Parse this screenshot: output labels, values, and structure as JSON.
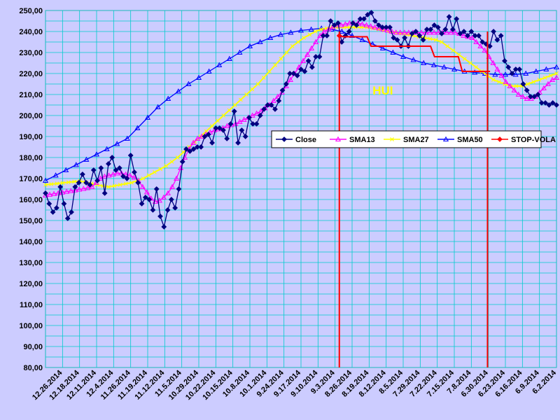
{
  "chart_data": {
    "type": "line",
    "ylim": [
      80,
      250
    ],
    "ytick_values": [
      80,
      90,
      100,
      110,
      120,
      130,
      140,
      150,
      160,
      170,
      180,
      190,
      200,
      210,
      220,
      230,
      240,
      250
    ],
    "ytick_labels": [
      "80,00",
      "90,00",
      "100,00",
      "110,00",
      "120,00",
      "130,00",
      "140,00",
      "150,00",
      "160,00",
      "170,00",
      "180,00",
      "190,00",
      "200,00",
      "210,00",
      "220,00",
      "230,00",
      "240,00",
      "250,00"
    ],
    "x_tick_labels": [
      "12.26.2014",
      "12.18.2014",
      "12.11.2014",
      "12.4.2014",
      "11.26.2014",
      "11.19.2014",
      "11.12.2014",
      "11.5.2014",
      "10.29.2014",
      "10.22.2014",
      "10.15.2014",
      "10.8.2014",
      "10.1.2014",
      "9.24.2014",
      "9.17.2014",
      "9.10.2014",
      "9.3.2014",
      "8.26.2014",
      "8.19.2014",
      "8.12.2014",
      "8.5.2014",
      "7.29.2014",
      "7.22.2014",
      "7.15.2014",
      "7.8.2014",
      "6.30.2014",
      "6.23.2014",
      "6.16.2014",
      "6.9.2014",
      "6.2.2014"
    ],
    "grid": true,
    "legend_position": "center-right",
    "annotation": {
      "text": "HUI",
      "color": "#ffff00"
    },
    "series": [
      {
        "name": "Close",
        "color": "#000080",
        "marker": "diamond",
        "values": [
          163,
          158,
          154,
          156,
          166,
          158,
          151,
          154,
          166,
          168,
          172,
          168,
          167,
          174,
          169,
          175,
          163,
          177,
          180,
          174,
          175,
          171,
          170,
          181,
          173,
          168,
          158,
          161,
          160,
          155,
          165,
          152,
          147,
          155,
          160,
          156,
          165,
          178,
          184,
          183,
          184,
          185,
          185,
          190,
          191,
          187,
          194,
          194,
          193,
          189,
          196,
          202,
          187,
          193,
          190,
          199,
          196,
          196,
          200,
          203,
          205,
          205,
          203,
          207,
          212,
          215,
          220,
          220,
          219,
          222,
          221,
          226,
          223,
          228,
          228,
          238,
          238,
          245,
          243,
          244,
          235,
          238,
          240,
          244,
          243,
          246,
          246,
          248,
          249,
          245,
          243,
          242,
          242,
          242,
          237,
          236,
          233,
          237,
          233,
          239,
          240,
          238,
          236,
          241,
          241,
          243,
          242,
          239,
          241,
          247,
          241,
          246,
          239,
          240,
          238,
          240,
          238,
          238,
          235,
          234,
          233,
          240,
          236,
          238,
          226,
          223,
          220,
          222,
          222,
          215,
          212,
          209,
          209,
          210,
          206,
          206,
          205,
          206,
          205
        ]
      },
      {
        "name": "SMA13",
        "color": "#ff00ff",
        "marker": "triangle",
        "values": [
          162,
          162.35,
          162.7,
          163.05,
          163.4,
          163.75,
          164.1,
          164.45,
          164.8,
          165.15,
          165.5,
          166,
          168,
          170,
          171,
          171.5,
          172,
          172.5,
          172.5,
          172,
          171.5,
          170.5,
          169,
          166,
          163.5,
          160.5,
          159,
          159.5,
          161,
          163,
          166,
          170,
          175,
          180,
          184,
          187,
          189,
          190,
          191,
          192,
          193,
          193.5,
          194,
          195,
          195.5,
          196,
          197,
          198,
          199,
          200,
          201,
          202,
          203.5,
          205,
          207,
          209,
          211,
          214,
          217,
          220,
          223,
          226,
          229,
          232,
          235,
          238,
          240,
          241,
          242,
          243,
          243,
          243.5,
          244,
          244,
          244,
          243.5,
          243,
          242.5,
          242,
          241.5,
          241,
          240.5,
          240,
          239.5,
          239.5,
          239.5,
          239.5,
          239.5,
          239.5,
          239.5,
          239.5,
          239.5,
          239.5,
          239.5,
          239.5,
          239.5,
          239.5,
          239.5,
          239,
          238,
          237.5,
          237,
          235,
          233,
          231,
          228,
          225,
          222,
          219,
          216,
          214,
          212,
          210,
          209,
          208,
          208,
          209,
          211,
          213,
          215,
          217,
          218
        ]
      },
      {
        "name": "SMA27",
        "color": "#ffff00",
        "marker": "x",
        "values": [
          167,
          167.3,
          167.6,
          167.9,
          168.2,
          168.5,
          168.8,
          168.2,
          167.6,
          167,
          166.4,
          166,
          166.5,
          167,
          167.5,
          168,
          169,
          170,
          171.5,
          173,
          174.5,
          176,
          178,
          180,
          182.5,
          185,
          187.5,
          190,
          192.5,
          195,
          197.5,
          200,
          202.5,
          205,
          207.5,
          210,
          212.5,
          215,
          218,
          221,
          224,
          227,
          230,
          233,
          235,
          237,
          238.5,
          240,
          241,
          241.5,
          242,
          242,
          242,
          242,
          242,
          242,
          242,
          241.5,
          241,
          240.5,
          240,
          239.5,
          239,
          238.5,
          238,
          237.5,
          237,
          236.5,
          236,
          235,
          233,
          231,
          229,
          227,
          225,
          223,
          221,
          219,
          217,
          216,
          215,
          214,
          214,
          214,
          215,
          216,
          217,
          218,
          219,
          220
        ]
      },
      {
        "name": "SMA50",
        "color": "#0000ff",
        "marker": "triangle-open",
        "values": [
          169,
          171.5,
          174,
          176.5,
          179,
          181.5,
          184,
          186.5,
          189,
          194,
          199,
          204,
          208,
          211.5,
          215,
          218,
          221,
          224,
          227,
          230,
          233,
          235,
          237,
          238.5,
          239.5,
          240.5,
          241,
          241.5,
          241,
          240,
          238,
          236,
          234,
          232,
          230,
          228,
          226.5,
          225,
          224,
          223,
          222,
          221,
          220.5,
          220,
          219.5,
          219.5,
          219.5,
          220,
          221,
          222,
          223
        ]
      },
      {
        "name": "STOP-VOLA",
        "color": "#ff0000",
        "marker": "diamond",
        "values": [
          238,
          237.5,
          237.5,
          237.5,
          237.5,
          237.5,
          237.5,
          237.5,
          233,
          233,
          233,
          233,
          233,
          233,
          233,
          233,
          233,
          233,
          233,
          233,
          233,
          233,
          233,
          233,
          228,
          228,
          228,
          228,
          228,
          228,
          228,
          221,
          221,
          221,
          221,
          221,
          221,
          221,
          221
        ]
      }
    ],
    "stop_vola_drops": [
      {
        "x_frac": 0.575,
        "to_value": 80
      },
      {
        "x_frac": 0.865,
        "to_value": 80
      }
    ]
  }
}
